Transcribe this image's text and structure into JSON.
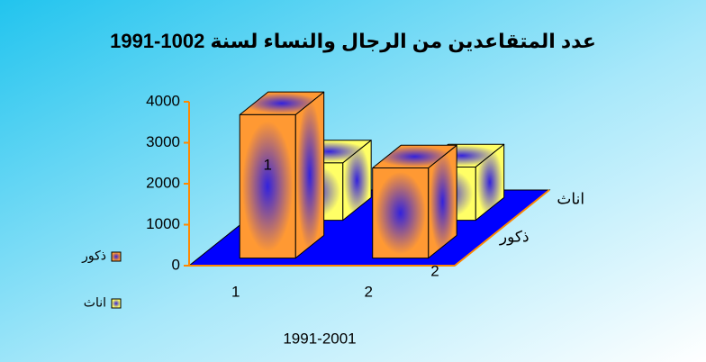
{
  "chart_data": {
    "type": "bar3d",
    "title": "عدد المتقاعدين من الرجال والنساء لسنة 1002-1991",
    "x_label": "1991-2001",
    "categories": [
      "1",
      "2"
    ],
    "series": [
      {
        "name": "ذكور",
        "color": "#ff9933",
        "values": [
          3500,
          2200
        ]
      },
      {
        "name": "اناث",
        "color": "#ffff66",
        "values": [
          1400,
          1300
        ]
      }
    ],
    "ylim": [
      0,
      4000
    ],
    "yticks": [
      0,
      1000,
      2000,
      3000,
      4000
    ],
    "annotations": [
      "2"
    ],
    "legend": "left"
  }
}
